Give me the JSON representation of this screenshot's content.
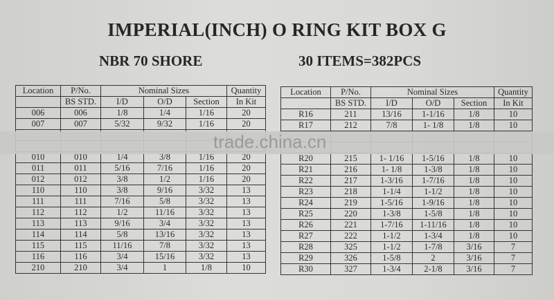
{
  "title": "IMPERIAL(INCH) O RING KIT BOX G",
  "subtitle_left": "NBR 70 SHORE",
  "subtitle_right": "30 ITEMS=382PCS",
  "watermark": "trade.china.cn",
  "headers": {
    "row1": [
      "Location",
      "P/No.",
      "Nominal Sizes",
      "Quantity"
    ],
    "row2": [
      "",
      "BS STD.",
      "I/D",
      "O/D",
      "Section",
      "In Kit"
    ]
  },
  "left_table": {
    "rows_before": [
      [
        "006",
        "006",
        "1/8",
        "1/4",
        "1/16",
        "20"
      ],
      [
        "007",
        "007",
        "5/32",
        "9/32",
        "1/16",
        "20"
      ]
    ],
    "rows_after": [
      [
        "010",
        "010",
        "1/4",
        "3/8",
        "1/16",
        "20"
      ],
      [
        "011",
        "011",
        "5/16",
        "7/16",
        "1/16",
        "20"
      ],
      [
        "012",
        "012",
        "3/8",
        "1/2",
        "1/16",
        "20"
      ],
      [
        "110",
        "110",
        "3/8",
        "9/16",
        "3/32",
        "13"
      ],
      [
        "111",
        "111",
        "7/16",
        "5/8",
        "3/32",
        "13"
      ],
      [
        "112",
        "112",
        "1/2",
        "11/16",
        "3/32",
        "13"
      ],
      [
        "113",
        "113",
        "9/16",
        "3/4",
        "3/32",
        "13"
      ],
      [
        "114",
        "114",
        "5/8",
        "13/16",
        "3/32",
        "13"
      ],
      [
        "115",
        "115",
        "11/16",
        "7/8",
        "3/32",
        "13"
      ],
      [
        "116",
        "116",
        "3/4",
        "15/16",
        "3/32",
        "13"
      ],
      [
        "210",
        "210",
        "3/4",
        "1",
        "1/8",
        "10"
      ]
    ]
  },
  "right_table": {
    "rows_before": [
      [
        "R16",
        "211",
        "13/16",
        "1-1/16",
        "1/8",
        "10"
      ],
      [
        "R17",
        "212",
        "7/8",
        "1- 1/8",
        "1/8",
        "10"
      ]
    ],
    "rows_after": [
      [
        "R20",
        "215",
        "1- 1/16",
        "1-5/16",
        "1/8",
        "10"
      ],
      [
        "R21",
        "216",
        "1- 1/8",
        "1-3/8",
        "1/8",
        "10"
      ],
      [
        "R22",
        "217",
        "1-3/16",
        "1-7/16",
        "1/8",
        "10"
      ],
      [
        "R23",
        "218",
        "1-1/4",
        "1-1/2",
        "1/8",
        "10"
      ],
      [
        "R24",
        "219",
        "1-5/16",
        "1-9/16",
        "1/8",
        "10"
      ],
      [
        "R25",
        "220",
        "1-3/8",
        "1-5/8",
        "1/8",
        "10"
      ],
      [
        "R26",
        "221",
        "1-7/16",
        "1-11/16",
        "1/8",
        "10"
      ],
      [
        "R27",
        "222",
        "1-1/2",
        "1-3/4",
        "1/8",
        "10"
      ],
      [
        "R28",
        "325",
        "1-1/2",
        "1-7/8",
        "3/16",
        "7"
      ],
      [
        "R29",
        "326",
        "1-5/8",
        "2",
        "3/16",
        "7"
      ],
      [
        "R30",
        "327",
        "1-3/4",
        "2-1/8",
        "3/16",
        "7"
      ]
    ]
  }
}
